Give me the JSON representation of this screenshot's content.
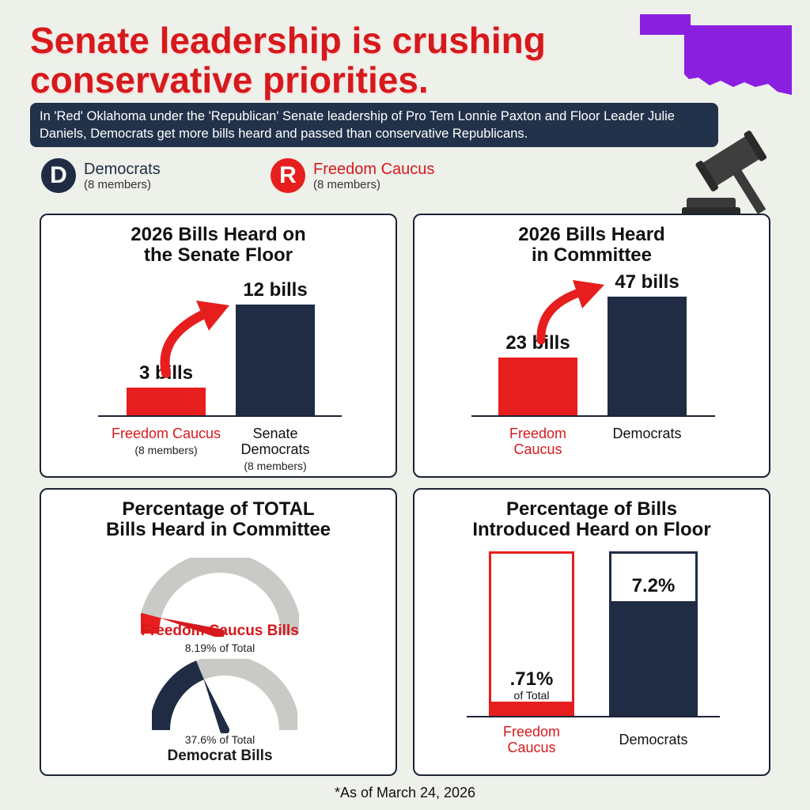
{
  "headline": {
    "line1": "Senate leadership is crushing",
    "line2": "conservative priorities."
  },
  "subtitle": "In 'Red' Oklahoma under the 'Republican' Senate leadership of Pro Tem Lonnie Paxton and Floor Leader Julie Daniels, Democrats get more bills heard and passed than conservative Republicans.",
  "legend": {
    "dem": {
      "letter": "D",
      "name": "Democrats",
      "members": "(8 members)"
    },
    "fc": {
      "letter": "R",
      "name": "Freedom Caucus",
      "members": "(8 members)"
    }
  },
  "colors": {
    "red": "#e61e1e",
    "navy": "#1f2c44",
    "gray": "#c9c9c6",
    "purple": "#8a1fe0"
  },
  "icons": [
    "oklahoma-map-icon",
    "gavel-icon",
    "arrow-up-icon",
    "gauge-icon"
  ],
  "chart_data": [
    {
      "type": "bar",
      "title": "2026 Bills Heard on\nthe Senate Floor",
      "categories": [
        "Freedom Caucus",
        "Senate Democrats"
      ],
      "category_subs": [
        "(8 members)",
        "(8 members)"
      ],
      "values": [
        3,
        12
      ],
      "value_labels": [
        "3 bills",
        "12 bills"
      ],
      "ylim": [
        0,
        12
      ]
    },
    {
      "type": "bar",
      "title": "2026 Bills Heard\nin Committee",
      "categories": [
        "Freedom Caucus",
        "Democrats"
      ],
      "values": [
        23,
        47
      ],
      "value_labels": [
        "23 bills",
        "47 bills"
      ],
      "ylim": [
        0,
        47
      ]
    },
    {
      "type": "gauge",
      "title": "Percentage of TOTAL\nBills Heard in Committee",
      "series": [
        {
          "name": "Freedom Caucus Bills",
          "value": 8.19,
          "label": "8.19% of Total"
        },
        {
          "name": "Democrat Bills",
          "value": 37.6,
          "label": "37.6% of Total"
        }
      ],
      "ylim": [
        0,
        100
      ]
    },
    {
      "type": "bar",
      "title": "Percentage of Bills\nIntroduced Heard on Floor",
      "categories": [
        "Freedom Caucus",
        "Democrats"
      ],
      "values": [
        0.71,
        7.2
      ],
      "value_labels": [
        ".71%",
        "7.2%"
      ],
      "value_subs": [
        "of Total",
        ""
      ]
    }
  ],
  "footnote": "*As of March 24, 2026"
}
